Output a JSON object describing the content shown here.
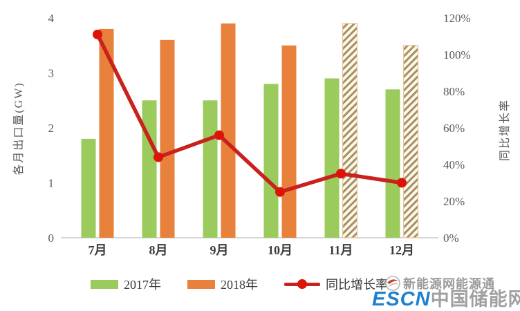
{
  "chart_data": {
    "type": "bar+line",
    "title": "",
    "categories": [
      "7月",
      "8月",
      "9月",
      "10月",
      "11月",
      "12月"
    ],
    "bar_series": [
      {
        "name": "2017年",
        "color_key": "green",
        "values": [
          1.8,
          2.5,
          2.5,
          2.8,
          2.9,
          2.7
        ],
        "hatched": [
          false,
          false,
          false,
          false,
          false,
          false
        ]
      },
      {
        "name": "2018年",
        "color_key": "orange",
        "values": [
          3.8,
          3.6,
          3.9,
          3.5,
          3.9,
          3.5
        ],
        "hatched": [
          false,
          false,
          false,
          false,
          true,
          true
        ]
      }
    ],
    "line_series": {
      "name": "同比增长率",
      "axis": "right",
      "values_percent": [
        111,
        44,
        56,
        25,
        35,
        30
      ]
    },
    "ylabel_left": "各月出口量(GW)",
    "ylabel_right": "同比增长率",
    "y_left": {
      "min": 0,
      "max": 4,
      "tick_labels": [
        "0",
        "1",
        "2",
        "3",
        "4"
      ]
    },
    "y_right": {
      "min": 0,
      "max": 120,
      "tick_labels": [
        "0%",
        "20%",
        "40%",
        "60%",
        "80%",
        "100%",
        "120%"
      ]
    },
    "grid": false,
    "legend_position": "bottom"
  },
  "legend": {
    "items": [
      {
        "label": "2017年",
        "marker": "green-swatch"
      },
      {
        "label": "2018年",
        "marker": "orange-swatch"
      },
      {
        "label": "同比增长率",
        "marker": "red-line-dot"
      }
    ]
  },
  "watermark": {
    "source_line": "新能源网能源通",
    "brand_left": "ESCN",
    "brand_right": "中国储能网"
  },
  "colors": {
    "bar_green": "#9ACB5C",
    "bar_orange": "#E7813B",
    "hatch_stripe": "#A6905F",
    "hatch_bg": "#FCF8EE",
    "hatch_border": "#ECC39B",
    "line_red": "#C9221E",
    "marker_red": "#DC1408",
    "axis_text": "#595959",
    "baseline": "#C8C8C8",
    "watermark_gray": "#9B9B9B",
    "escn_blue": "#1F80D0"
  }
}
